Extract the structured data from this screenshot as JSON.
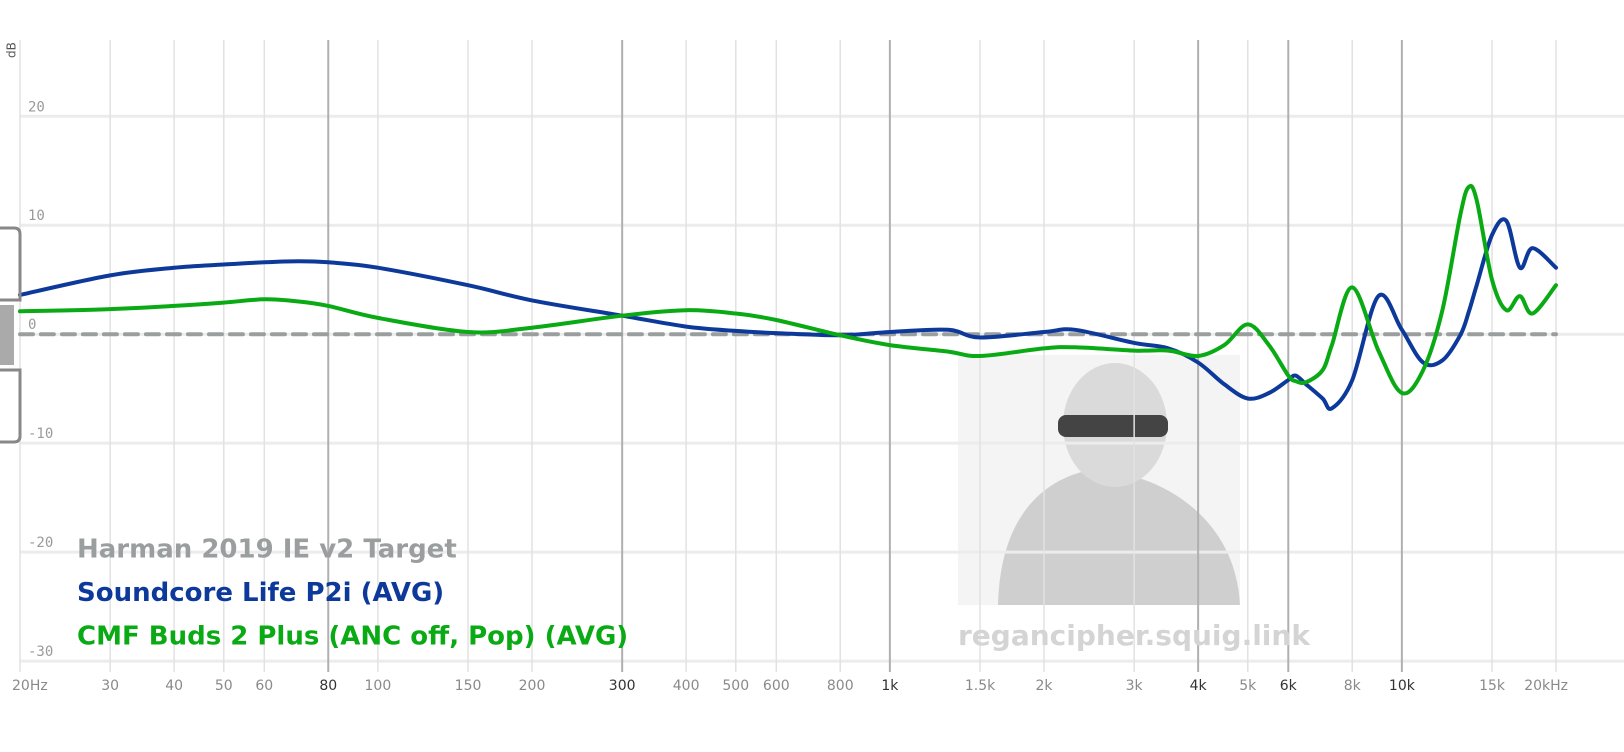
{
  "chart_data": {
    "type": "line",
    "y_label": "dB",
    "log_x": true,
    "grid": true,
    "legend": "bottom-left",
    "watermark": "regancipher.squig.link",
    "xlim": [
      20,
      20000
    ],
    "ylim": [
      -31,
      27
    ],
    "yticks": [
      20,
      10,
      0,
      -10,
      -20,
      -30
    ],
    "xticks": [
      {
        "value": 20,
        "label": "20Hz"
      },
      30,
      40,
      50,
      60,
      {
        "value": 80,
        "label": "80",
        "major": true
      },
      100,
      150,
      200,
      {
        "value": 300,
        "label": "300",
        "major": true
      },
      400,
      500,
      600,
      800,
      {
        "value": 1000,
        "label": "1k",
        "major": true
      },
      {
        "value": 1500,
        "label": "1.5k"
      },
      {
        "value": 2000,
        "label": "2k"
      },
      {
        "value": 3000,
        "label": "3k"
      },
      {
        "value": 4000,
        "label": "4k",
        "major": true
      },
      {
        "value": 5000,
        "label": "5k"
      },
      {
        "value": 6000,
        "label": "6k",
        "major": true
      },
      {
        "value": 8000,
        "label": "8k"
      },
      {
        "value": 10000,
        "label": "10k",
        "major": true
      },
      {
        "value": 15000,
        "label": "15k"
      },
      {
        "value": 20000,
        "label": "20kHz"
      }
    ],
    "x": [
      20,
      30,
      40,
      50,
      60,
      70,
      80,
      100,
      150,
      200,
      300,
      400,
      500,
      600,
      800,
      1000,
      1300,
      1500,
      2000,
      2300,
      3000,
      3500,
      4000,
      4500,
      5000,
      5500,
      6000,
      6200,
      6500,
      7000,
      7300,
      8000,
      9000,
      10000,
      11000,
      12000,
      13000,
      13500,
      14000,
      15000,
      16000,
      17000,
      18000,
      20000
    ],
    "series": [
      {
        "name": "Harman 2019 IE v2 Target",
        "color": "#9a9e9e",
        "dashed": true,
        "x": [
          20,
          20000
        ],
        "values": [
          0,
          0
        ]
      },
      {
        "name": "Soundcore Life P2i (AVG)",
        "color": "#0d3a9a",
        "values": [
          3.6,
          5.4,
          6.1,
          6.4,
          6.6,
          6.7,
          6.6,
          6.1,
          4.5,
          3.1,
          1.7,
          0.7,
          0.3,
          0.1,
          -0.1,
          0.2,
          0.4,
          -0.3,
          0.2,
          0.4,
          -0.8,
          -1.3,
          -2.6,
          -4.6,
          -5.9,
          -5.4,
          -4.2,
          -3.8,
          -4.6,
          -5.9,
          -6.8,
          -4.2,
          3.5,
          0.4,
          -2.6,
          -2.4,
          -0.1,
          2.0,
          4.5,
          9.1,
          10.4,
          6.1,
          7.9,
          6.1
        ]
      },
      {
        "name": "CMF Buds 2 Plus (ANC off, Pop) (AVG)",
        "color": "#0aaa14",
        "values": [
          2.1,
          2.3,
          2.6,
          2.9,
          3.2,
          3.0,
          2.6,
          1.5,
          0.2,
          0.6,
          1.7,
          2.2,
          1.9,
          1.3,
          -0.1,
          -1.0,
          -1.6,
          -2.0,
          -1.3,
          -1.2,
          -1.5,
          -1.5,
          -2.0,
          -1.0,
          0.9,
          -1.0,
          -3.8,
          -4.3,
          -4.4,
          -3.3,
          -1.0,
          4.3,
          -1.5,
          -5.4,
          -3.3,
          2.2,
          10.9,
          13.5,
          12.3,
          5.0,
          2.2,
          3.5,
          1.9,
          4.5
        ]
      }
    ]
  }
}
